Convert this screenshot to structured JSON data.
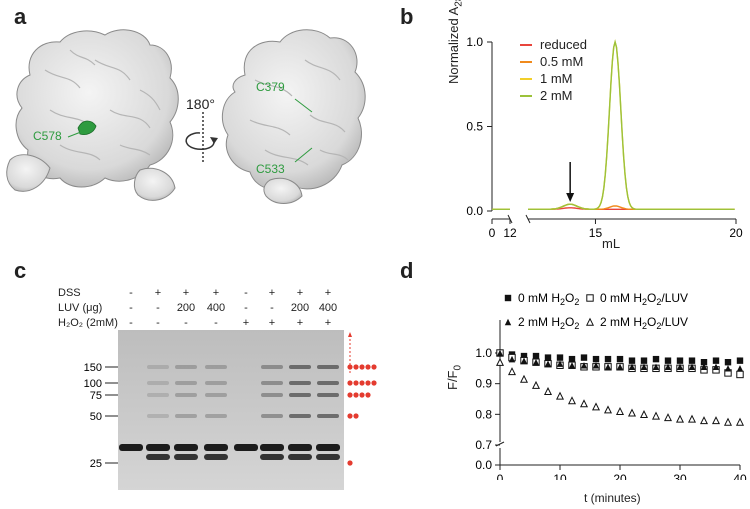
{
  "panels": {
    "a": "a",
    "b": "b",
    "c": "c",
    "d": "d"
  },
  "panel_a": {
    "rotation_label": "180°",
    "residues": [
      "C578",
      "C379",
      "C533"
    ]
  },
  "panel_c": {
    "row_labels": [
      "DSS",
      "LUV (μg)",
      "H₂O₂ (2mM)"
    ],
    "lanes": [
      {
        "dss": "-",
        "luv": "-",
        "h2o2": "-"
      },
      {
        "dss": "+",
        "luv": "-",
        "h2o2": "-"
      },
      {
        "dss": "+",
        "luv": "200",
        "h2o2": "-"
      },
      {
        "dss": "+",
        "luv": "400",
        "h2o2": "-"
      },
      {
        "dss": "-",
        "luv": "-",
        "h2o2": "+"
      },
      {
        "dss": "+",
        "luv": "-",
        "h2o2": "+"
      },
      {
        "dss": "+",
        "luv": "200",
        "h2o2": "+"
      },
      {
        "dss": "+",
        "luv": "400",
        "h2o2": "+"
      }
    ],
    "markers": [
      "150",
      "100",
      "75",
      "50",
      "25"
    ],
    "oligomer_dots": [
      5,
      5,
      4,
      2,
      1
    ]
  },
  "chart_data": [
    {
      "type": "line",
      "panel": "b",
      "xlabel": "mL",
      "ylabel": "Normalized A280",
      "xticks": [
        "0",
        "12",
        "15",
        "20"
      ],
      "yticks": [
        "0.0",
        "0.5",
        "1.0"
      ],
      "ylim": [
        0,
        1.0
      ],
      "legend_position": "top-right",
      "series": [
        {
          "name": "reduced",
          "color": "#e8453c"
        },
        {
          "name": "0.5 mM",
          "color": "#f08a1c"
        },
        {
          "name": "1 mM",
          "color": "#f2cf2a"
        },
        {
          "name": "2 mM",
          "color": "#9cc23a"
        }
      ],
      "peak_x": 15.7,
      "peak_y": 1.0,
      "minor_peak_x": 14.1,
      "minor_peak_y": 0.03
    },
    {
      "type": "scatter",
      "panel": "d",
      "xlabel": "t (minutes)",
      "ylabel": "F/F0",
      "xlim": [
        0,
        40
      ],
      "xticks": [
        "0",
        "10",
        "20",
        "30",
        "40"
      ],
      "yticks": [
        "0.0",
        "0.7",
        "0.8",
        "0.9",
        "1.0"
      ],
      "legend_position": "top",
      "x": [
        0,
        2,
        4,
        6,
        8,
        10,
        12,
        14,
        16,
        18,
        20,
        22,
        24,
        26,
        28,
        30,
        32,
        34,
        36,
        38,
        40
      ],
      "series": [
        {
          "name": "0 mM H2O2",
          "marker": "filled-square",
          "values": [
            1.0,
            0.995,
            0.99,
            0.99,
            0.985,
            0.985,
            0.98,
            0.985,
            0.98,
            0.98,
            0.98,
            0.975,
            0.975,
            0.98,
            0.975,
            0.975,
            0.975,
            0.97,
            0.975,
            0.97,
            0.975
          ]
        },
        {
          "name": "0 mM H2O2/LUV",
          "marker": "open-square",
          "values": [
            1.0,
            0.985,
            0.975,
            0.97,
            0.965,
            0.96,
            0.96,
            0.955,
            0.955,
            0.955,
            0.955,
            0.95,
            0.95,
            0.95,
            0.95,
            0.95,
            0.95,
            0.945,
            0.945,
            0.935,
            0.93
          ]
        },
        {
          "name": "2 mM H2O2",
          "marker": "filled-triangle",
          "values": [
            1.0,
            0.98,
            0.975,
            0.97,
            0.965,
            0.965,
            0.96,
            0.96,
            0.96,
            0.955,
            0.955,
            0.955,
            0.955,
            0.955,
            0.955,
            0.955,
            0.955,
            0.955,
            0.955,
            0.95,
            0.95
          ]
        },
        {
          "name": "2 mM H2O2/LUV",
          "marker": "open-triangle",
          "values": [
            0.97,
            0.94,
            0.915,
            0.895,
            0.875,
            0.86,
            0.845,
            0.835,
            0.825,
            0.815,
            0.81,
            0.805,
            0.8,
            0.795,
            0.79,
            0.785,
            0.785,
            0.78,
            0.78,
            0.775,
            0.775
          ]
        }
      ]
    }
  ]
}
